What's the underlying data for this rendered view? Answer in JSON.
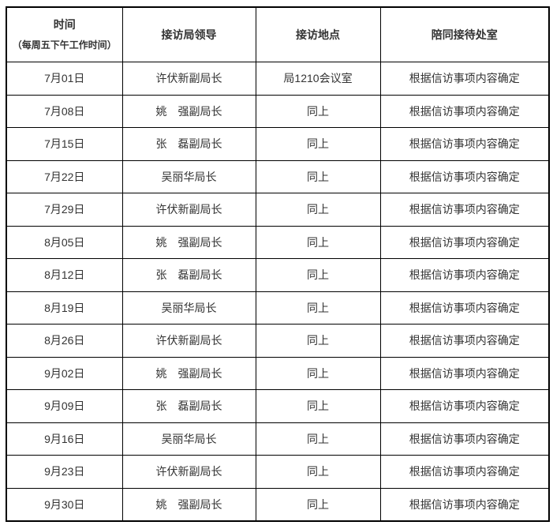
{
  "colors": {
    "background": "#ffffff",
    "border": "#000000",
    "text": "#333333"
  },
  "table": {
    "header": {
      "time_title": "时间",
      "time_subtitle": "（每周五下午工作时间）",
      "leader": "接访局领导",
      "location": "接访地点",
      "office": "陪同接待处室"
    },
    "rows": [
      {
        "date": "7月01日",
        "leader": "许伏新副局长",
        "location": "局1210会议室",
        "office": "根据信访事项内容确定"
      },
      {
        "date": "7月08日",
        "leader": "姚　强副局长",
        "location": "同上",
        "office": "根据信访事项内容确定"
      },
      {
        "date": "7月15日",
        "leader": "张　磊副局长",
        "location": "同上",
        "office": "根据信访事项内容确定"
      },
      {
        "date": "7月22日",
        "leader": "吴丽华局长",
        "location": "同上",
        "office": "根据信访事项内容确定"
      },
      {
        "date": "7月29日",
        "leader": "许伏新副局长",
        "location": "同上",
        "office": "根据信访事项内容确定"
      },
      {
        "date": "8月05日",
        "leader": "姚　强副局长",
        "location": "同上",
        "office": "根据信访事项内容确定"
      },
      {
        "date": "8月12日",
        "leader": "张　磊副局长",
        "location": "同上",
        "office": "根据信访事项内容确定"
      },
      {
        "date": "8月19日",
        "leader": "吴丽华局长",
        "location": "同上",
        "office": "根据信访事项内容确定"
      },
      {
        "date": "8月26日",
        "leader": "许伏新副局长",
        "location": "同上",
        "office": "根据信访事项内容确定"
      },
      {
        "date": "9月02日",
        "leader": "姚　强副局长",
        "location": "同上",
        "office": "根据信访事项内容确定"
      },
      {
        "date": "9月09日",
        "leader": "张　磊副局长",
        "location": "同上",
        "office": "根据信访事项内容确定"
      },
      {
        "date": "9月16日",
        "leader": "吴丽华局长",
        "location": "同上",
        "office": "根据信访事项内容确定"
      },
      {
        "date": "9月23日",
        "leader": "许伏新副局长",
        "location": "同上",
        "office": "根据信访事项内容确定"
      },
      {
        "date": "9月30日",
        "leader": "姚　强副局长",
        "location": "同上",
        "office": "根据信访事项内容确定"
      }
    ]
  }
}
